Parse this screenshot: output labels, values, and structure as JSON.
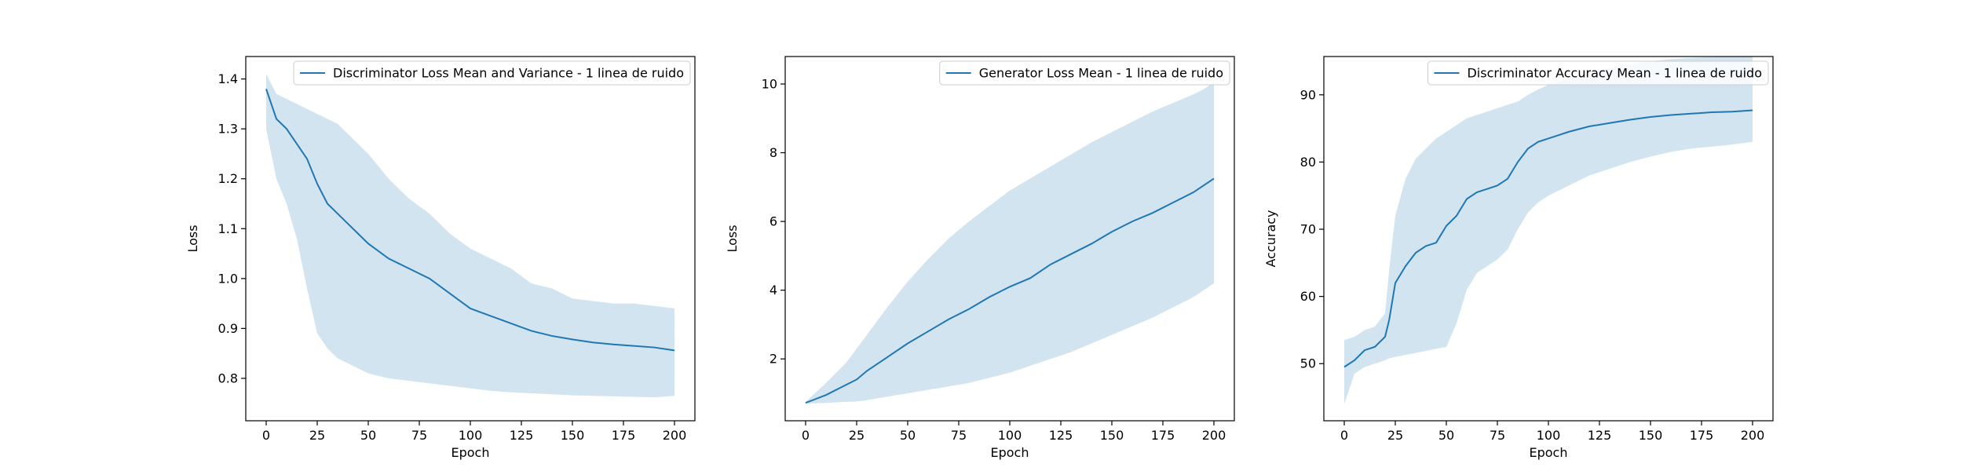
{
  "figure": {
    "colors": {
      "line": "#1f77b4",
      "band": "#1f77b4",
      "band_opacity": 0.2
    }
  },
  "chart_data": [
    {
      "type": "line",
      "xlabel": "Epoch",
      "ylabel": "Loss",
      "xlim": [
        -10,
        210
      ],
      "ylim": [
        0.715,
        1.445
      ],
      "xticks": [
        0,
        25,
        50,
        75,
        100,
        125,
        150,
        175,
        200
      ],
      "yticks": [
        0.8,
        0.9,
        1.0,
        1.1,
        1.2,
        1.3,
        1.4
      ],
      "ytick_decimals": 1,
      "legend": {
        "position": "top-right",
        "label": "Discriminator Loss Mean and Variance - 1 linea de ruido"
      },
      "series": [
        {
          "name": "Discriminator Loss Mean and Variance - 1 linea de ruido",
          "x": [
            0,
            5,
            10,
            15,
            20,
            25,
            30,
            35,
            40,
            45,
            50,
            60,
            70,
            80,
            90,
            100,
            110,
            120,
            130,
            140,
            150,
            160,
            170,
            180,
            190,
            200
          ],
          "y": [
            1.38,
            1.32,
            1.3,
            1.27,
            1.24,
            1.19,
            1.15,
            1.13,
            1.11,
            1.09,
            1.07,
            1.04,
            1.02,
            1.0,
            0.97,
            0.94,
            0.925,
            0.91,
            0.895,
            0.885,
            0.878,
            0.872,
            0.868,
            0.865,
            0.862,
            0.856
          ],
          "lower": [
            1.3,
            1.2,
            1.15,
            1.08,
            0.98,
            0.89,
            0.86,
            0.84,
            0.83,
            0.82,
            0.81,
            0.8,
            0.795,
            0.79,
            0.785,
            0.78,
            0.775,
            0.772,
            0.77,
            0.768,
            0.766,
            0.765,
            0.764,
            0.763,
            0.762,
            0.765
          ],
          "upper": [
            1.41,
            1.37,
            1.36,
            1.35,
            1.34,
            1.33,
            1.32,
            1.31,
            1.29,
            1.27,
            1.25,
            1.2,
            1.16,
            1.13,
            1.09,
            1.06,
            1.04,
            1.02,
            0.99,
            0.98,
            0.96,
            0.955,
            0.95,
            0.95,
            0.945,
            0.94
          ]
        }
      ]
    },
    {
      "type": "line",
      "xlabel": "Epoch",
      "ylabel": "Loss",
      "xlim": [
        -10,
        210
      ],
      "ylim": [
        0.2,
        10.8
      ],
      "xticks": [
        0,
        25,
        50,
        75,
        100,
        125,
        150,
        175,
        200
      ],
      "yticks": [
        2,
        4,
        6,
        8,
        10
      ],
      "ytick_decimals": 0,
      "legend": {
        "position": "top-right",
        "label": "Generator Loss Mean - 1 linea de ruido"
      },
      "series": [
        {
          "name": "Generator Loss Mean - 1 linea de ruido",
          "x": [
            0,
            10,
            20,
            25,
            30,
            40,
            50,
            60,
            70,
            80,
            90,
            100,
            110,
            120,
            130,
            140,
            150,
            160,
            170,
            180,
            190,
            195,
            200
          ],
          "y": [
            0.72,
            0.95,
            1.25,
            1.4,
            1.65,
            2.05,
            2.45,
            2.8,
            3.15,
            3.45,
            3.8,
            4.1,
            4.35,
            4.75,
            5.05,
            5.35,
            5.7,
            6.0,
            6.25,
            6.55,
            6.85,
            7.05,
            7.25
          ],
          "lower": [
            0.7,
            0.72,
            0.75,
            0.76,
            0.8,
            0.9,
            1.0,
            1.1,
            1.2,
            1.3,
            1.45,
            1.6,
            1.8,
            2.0,
            2.2,
            2.45,
            2.7,
            2.95,
            3.2,
            3.5,
            3.8,
            4.0,
            4.2
          ],
          "upper": [
            0.75,
            1.3,
            1.9,
            2.3,
            2.7,
            3.5,
            4.25,
            4.9,
            5.5,
            6.0,
            6.45,
            6.9,
            7.25,
            7.6,
            7.95,
            8.3,
            8.6,
            8.9,
            9.2,
            9.45,
            9.7,
            9.85,
            10.05
          ]
        }
      ]
    },
    {
      "type": "line",
      "xlabel": "Epoch",
      "ylabel": "Accuracy",
      "xlim": [
        -10,
        210
      ],
      "ylim": [
        41.5,
        95.7
      ],
      "xticks": [
        0,
        25,
        50,
        75,
        100,
        125,
        150,
        175,
        200
      ],
      "yticks": [
        50,
        60,
        70,
        80,
        90
      ],
      "ytick_decimals": 0,
      "legend": {
        "position": "top-right",
        "label": "Discriminator Accuracy Mean - 1 linea de ruido"
      },
      "series": [
        {
          "name": "Discriminator Accuracy Mean - 1 linea de ruido",
          "x": [
            0,
            5,
            10,
            15,
            20,
            22,
            25,
            30,
            35,
            40,
            45,
            50,
            55,
            60,
            65,
            70,
            75,
            80,
            85,
            90,
            95,
            100,
            110,
            120,
            130,
            140,
            150,
            160,
            170,
            180,
            190,
            200
          ],
          "y": [
            49.5,
            50.5,
            52.0,
            52.5,
            54.0,
            56.5,
            62.0,
            64.5,
            66.5,
            67.5,
            68.0,
            70.5,
            72.0,
            74.5,
            75.5,
            76.0,
            76.5,
            77.5,
            80.0,
            82.0,
            83.0,
            83.5,
            84.5,
            85.3,
            85.8,
            86.3,
            86.7,
            87.0,
            87.2,
            87.4,
            87.5,
            87.7
          ],
          "lower": [
            44.0,
            48.5,
            49.5,
            50.0,
            50.5,
            50.8,
            51.0,
            51.3,
            51.6,
            51.9,
            52.2,
            52.5,
            56.0,
            61.0,
            63.5,
            64.5,
            65.5,
            67.0,
            70.0,
            72.5,
            74.0,
            75.0,
            76.5,
            78.0,
            79.0,
            80.0,
            80.8,
            81.5,
            82.0,
            82.3,
            82.6,
            83.0
          ],
          "upper": [
            53.5,
            54.0,
            55.0,
            55.5,
            57.5,
            64.0,
            72.0,
            77.5,
            80.5,
            82.0,
            83.5,
            84.5,
            85.5,
            86.5,
            87.0,
            87.5,
            88.0,
            88.5,
            89.0,
            90.0,
            90.8,
            91.5,
            92.5,
            93.3,
            94.0,
            94.6,
            95.0,
            95.3,
            95.5,
            95.6,
            95.7,
            95.7
          ]
        }
      ]
    }
  ]
}
